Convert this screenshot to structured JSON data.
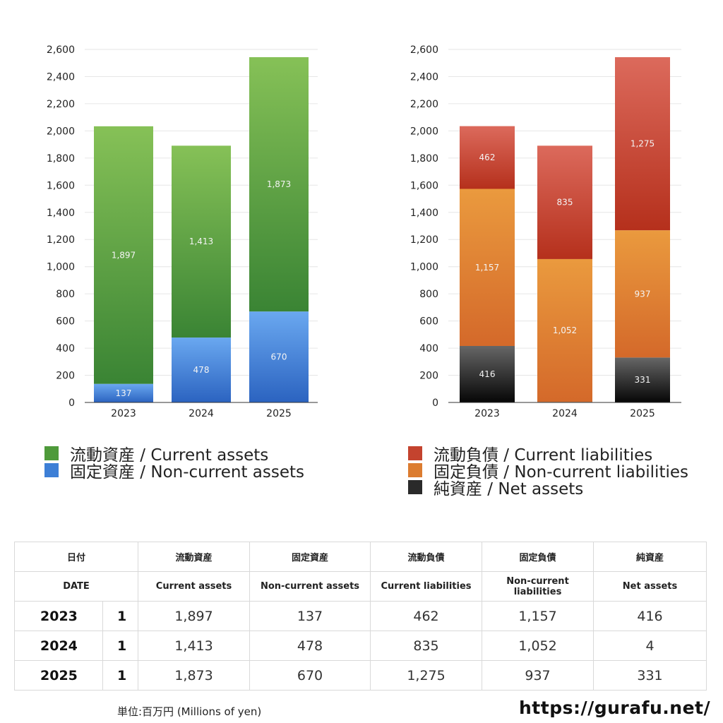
{
  "chart_data": [
    {
      "type": "bar",
      "stacked": true,
      "categories": [
        "2023",
        "2024",
        "2025"
      ],
      "series": [
        {
          "name": "固定資産 / Non-current assets",
          "values": [
            137,
            478,
            670
          ],
          "color": "#3d7fd6"
        },
        {
          "name": "流動資産 / Current assets",
          "values": [
            1897,
            1413,
            1873
          ],
          "color": "#4e9a3a"
        }
      ],
      "ylim": [
        0,
        2600
      ],
      "yticks": [
        "0",
        "200",
        "400",
        "600",
        "800",
        "1,000",
        "1,200",
        "1,400",
        "1,600",
        "1,800",
        "2,000",
        "2,200",
        "2,400",
        "2,600"
      ],
      "grid": true,
      "legend_order": [
        1,
        0
      ]
    },
    {
      "type": "bar",
      "stacked": true,
      "categories": [
        "2023",
        "2024",
        "2025"
      ],
      "series": [
        {
          "name": "純資産 / Net assets",
          "values": [
            416,
            4,
            331
          ],
          "color": "#2a2a2a"
        },
        {
          "name": "固定負債 / Non-current liabilities",
          "values": [
            1157,
            1052,
            937
          ],
          "color": "#dc7c30"
        },
        {
          "name": "流動負債 / Current liabilities",
          "values": [
            462,
            835,
            1275
          ],
          "color": "#c4432e"
        }
      ],
      "ylim": [
        0,
        2600
      ],
      "yticks": [
        "0",
        "200",
        "400",
        "600",
        "800",
        "1,000",
        "1,200",
        "1,400",
        "1,600",
        "1,800",
        "2,000",
        "2,200",
        "2,400",
        "2,600"
      ],
      "grid": true,
      "legend_order": [
        2,
        1,
        0
      ]
    }
  ],
  "table": {
    "header_jp": [
      "日付",
      "流動資産",
      "固定資産",
      "流動負債",
      "固定負債",
      "純資産"
    ],
    "header_en": [
      "DATE",
      "Current assets",
      "Non-current assets",
      "Current liabilities",
      "Non-current liabilities",
      "Net assets"
    ],
    "rows": [
      {
        "year": "2023",
        "month": "1",
        "values": [
          "1,897",
          "137",
          "462",
          "1,157",
          "416"
        ]
      },
      {
        "year": "2024",
        "month": "1",
        "values": [
          "1,413",
          "478",
          "835",
          "1,052",
          "4"
        ]
      },
      {
        "year": "2025",
        "month": "1",
        "values": [
          "1,873",
          "670",
          "1,275",
          "937",
          "331"
        ]
      }
    ]
  },
  "unit_note": "単位:百万円 (Millions of yen)",
  "site_url": "https://gurafu.net/"
}
